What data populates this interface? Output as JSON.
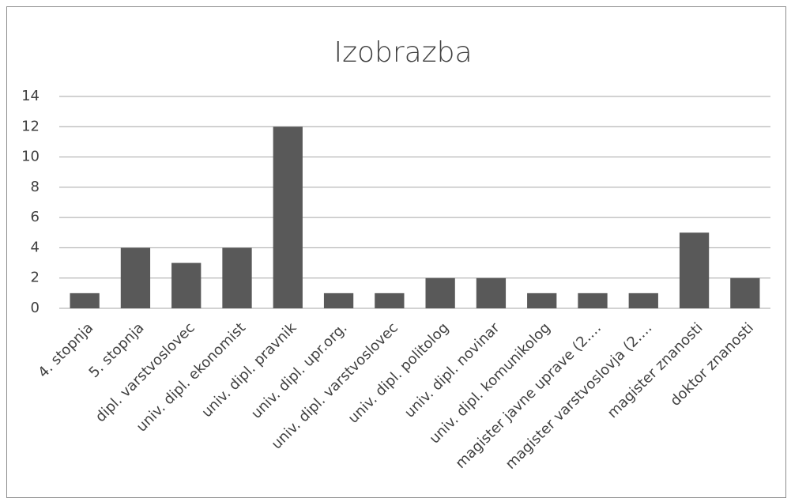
{
  "chart_data": {
    "type": "bar",
    "title": "Izobrazba",
    "categories": [
      "4. stopnja",
      "5. stopnja",
      "dipl. varstvoslovec",
      "univ. dipl. ekonomist",
      "univ. dipl. pravnik",
      "univ. dipl. upr.org.",
      "univ. dipl. varstvoslovec",
      "univ. dipl. politolog",
      "univ. dipl. novinar",
      "univ. dipl. komunikolog",
      "magister javne uprave (2.…",
      "magister varstvoslovja (2.…",
      "magister znanosti",
      "doktor znanosti"
    ],
    "values": [
      1,
      4,
      3,
      4,
      12,
      1,
      1,
      2,
      2,
      1,
      1,
      1,
      5,
      2
    ],
    "color": "#595959",
    "ylim": [
      0,
      14
    ],
    "yticks": [
      0,
      2,
      4,
      6,
      8,
      10,
      12,
      14
    ],
    "grid": true
  }
}
